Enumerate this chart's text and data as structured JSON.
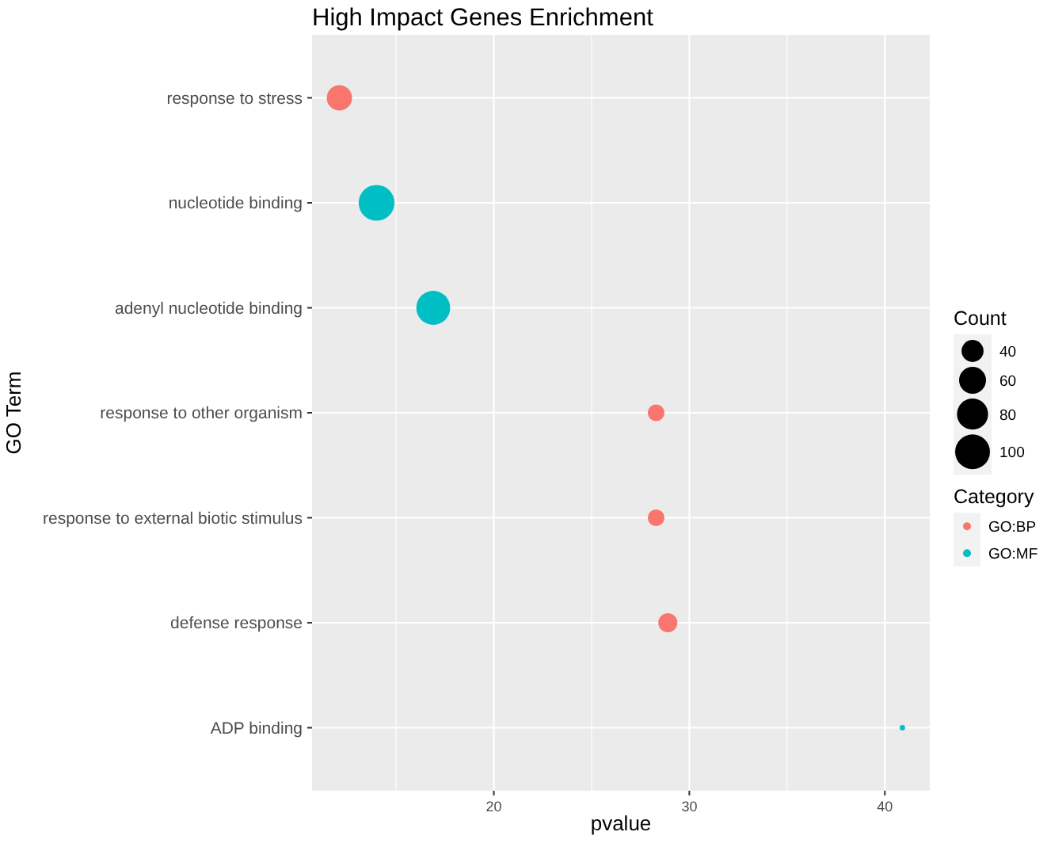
{
  "chart_data": {
    "type": "bubble",
    "title": "High Impact Genes Enrichment",
    "xlabel": "pvalue",
    "ylabel": "GO Term",
    "legend_title": "Category",
    "orientation": "horizontal",
    "categories": [
      "response to stress",
      "nucleotide binding",
      "adenyl nucleotide binding",
      "response to other organism",
      "response to external biotic stimulus",
      "defense response",
      "ADP binding"
    ],
    "series": [
      {
        "name": "GO:BP",
        "color": "#f8766d",
        "values": [
          12.1,
          null,
          null,
          28.3,
          28.3,
          28.9,
          null
        ],
        "sizes": [
          53,
          null,
          null,
          23,
          23,
          30,
          null
        ]
      },
      {
        "name": "GO:MF",
        "color": "#00bfc4",
        "values": [
          null,
          14.0,
          16.9,
          null,
          null,
          null,
          40.9
        ],
        "sizes": [
          null,
          106,
          95,
          null,
          null,
          null,
          2.4
        ]
      }
    ],
    "annotations": [
      "Count"
    ],
    "size_legend": [
      40,
      60,
      80,
      100
    ],
    "xlim": [
      10.7,
      42.3
    ],
    "xticks": [
      20,
      30,
      40
    ],
    "grid": true,
    "legend": "right",
    "marker": "circle"
  }
}
